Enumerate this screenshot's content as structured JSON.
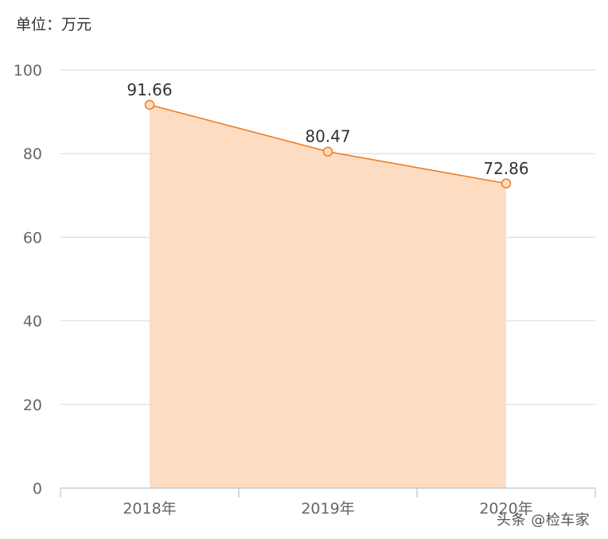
{
  "unit_label": "单位：万元",
  "watermark": "头条 @检车家",
  "colors": {
    "line": "#f07a1e",
    "area": "#fddcc2",
    "grid": "#d8d8d8",
    "axis": "#b8c4d4"
  },
  "chart_data": {
    "type": "area",
    "categories": [
      "2018年",
      "2019年",
      "2020年"
    ],
    "series": [
      {
        "values": [
          91.66,
          80.47,
          72.86
        ]
      }
    ],
    "data_labels": [
      "91.66",
      "80.47",
      "72.86"
    ],
    "yticks": [
      "0",
      "20",
      "40",
      "60",
      "80",
      "100"
    ],
    "ylim": [
      0,
      100
    ],
    "grid": true,
    "legend": "none"
  }
}
